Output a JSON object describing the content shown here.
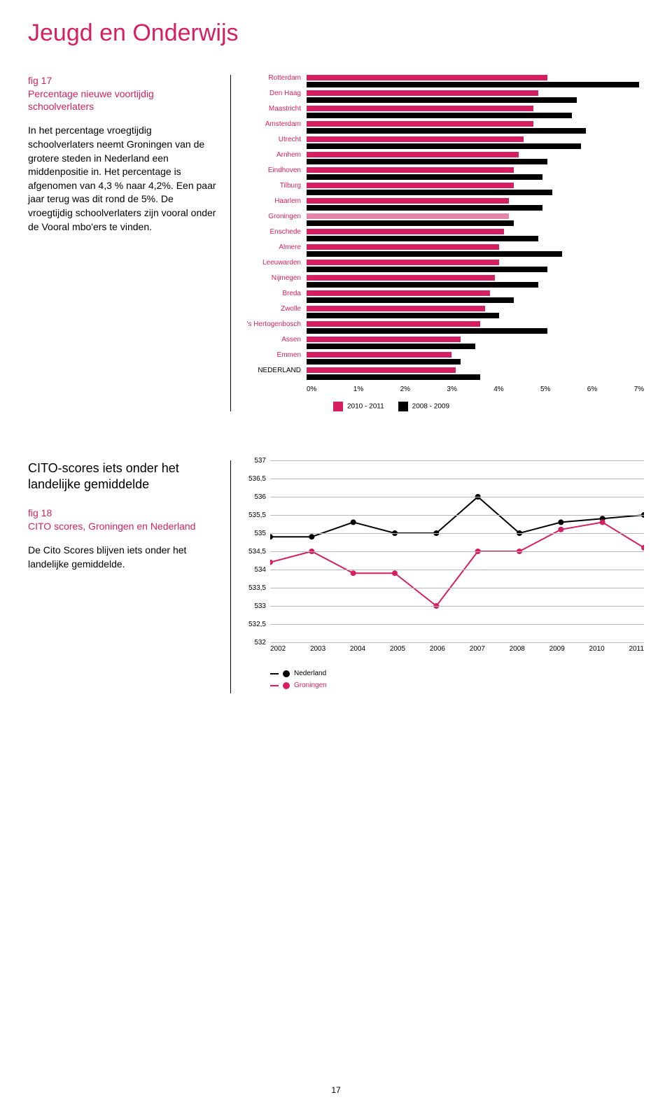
{
  "page_title": "Jeugd en Onderwijs",
  "page_number": "17",
  "fig17": {
    "label": "fig 17",
    "title": "Percentage nieuwe voortijdig schoolverlaters",
    "body": "In het percentage vroegtijdig schoolverlaters neemt Groningen van de grotere steden in Nederland een middenpositie in. Het percentage is afgenomen van 4,3 % naar 4,2%. Een paar jaar terug was dit rond de 5%. De vroegtijdig schoolverlaters zijn vooral onder de Vooral mbo'ers te vinden.",
    "chart": {
      "type": "bar",
      "x_min": 0,
      "x_max": 7,
      "x_step": 1,
      "x_tick_labels": [
        "0%",
        "1%",
        "2%",
        "3%",
        "4%",
        "5%",
        "6%",
        "7%"
      ],
      "series_a_label": "2010 - 2011",
      "series_a_color": "#d61f62",
      "series_b_label": "2008 - 2009",
      "series_b_color": "#000000",
      "label_color": "#d61f62",
      "label_color_black": "#000000",
      "fontsize": 10,
      "rows": [
        {
          "label": "Rotterdam",
          "a": 5.0,
          "b": 6.9
        },
        {
          "label": "Den Haag",
          "a": 4.8,
          "b": 5.6
        },
        {
          "label": "Maastricht",
          "a": 4.7,
          "b": 5.5
        },
        {
          "label": "Amsterdam",
          "a": 4.7,
          "b": 5.8
        },
        {
          "label": "Utrecht",
          "a": 4.5,
          "b": 5.7
        },
        {
          "label": "Arnhem",
          "a": 4.4,
          "b": 5.0
        },
        {
          "label": "Eindhoven",
          "a": 4.3,
          "b": 4.9
        },
        {
          "label": "Tilburg",
          "a": 4.3,
          "b": 5.1
        },
        {
          "label": "Haarlem",
          "a": 4.2,
          "b": 4.9
        },
        {
          "label": "Groningen",
          "a": 4.2,
          "b": 4.3,
          "highlight": true
        },
        {
          "label": "Enschede",
          "a": 4.1,
          "b": 4.8
        },
        {
          "label": "Almere",
          "a": 4.0,
          "b": 5.3
        },
        {
          "label": "Leeuwarden",
          "a": 4.0,
          "b": 5.0
        },
        {
          "label": "Nijmegen",
          "a": 3.9,
          "b": 4.8
        },
        {
          "label": "Breda",
          "a": 3.8,
          "b": 4.3
        },
        {
          "label": "Zwolle",
          "a": 3.7,
          "b": 4.0
        },
        {
          "label": "'s Hertogenbosch",
          "a": 3.6,
          "b": 5.0
        },
        {
          "label": "Assen",
          "a": 3.2,
          "b": 3.5
        },
        {
          "label": "Emmen",
          "a": 3.0,
          "b": 3.2
        },
        {
          "label": "NEDERLAND",
          "a": 3.1,
          "b": 3.6,
          "black_label": true
        }
      ]
    }
  },
  "fig18": {
    "section_heading": "CITO-scores iets onder het landelijke gemiddelde",
    "label": "fig 18",
    "title": "CITO scores, Groningen en Nederland",
    "body": "De Cito Scores blijven iets onder het landelijke gemiddelde.",
    "chart": {
      "type": "line",
      "y_min": 532,
      "y_max": 537,
      "y_step": 0.5,
      "y_ticks": [
        "537",
        "536,5",
        "536",
        "535,5",
        "535",
        "534,5",
        "534",
        "533,5",
        "533",
        "532,5",
        "532"
      ],
      "x_labels": [
        "2002",
        "2003",
        "2004",
        "2005",
        "2006",
        "2007",
        "2008",
        "2009",
        "2010",
        "2011"
      ],
      "grid_color": "#b8b8b8",
      "fontsize": 10,
      "series": [
        {
          "name": "Nederland",
          "color": "#000000",
          "marker": "circle",
          "values": [
            534.9,
            534.9,
            535.3,
            535.0,
            535.0,
            536.0,
            535.0,
            535.3,
            535.4,
            535.5
          ]
        },
        {
          "name": "Groningen",
          "color": "#d61f62",
          "marker": "circle",
          "values": [
            534.2,
            534.5,
            533.9,
            533.9,
            533.0,
            534.5,
            534.5,
            535.1,
            535.3,
            534.6
          ]
        }
      ]
    }
  }
}
